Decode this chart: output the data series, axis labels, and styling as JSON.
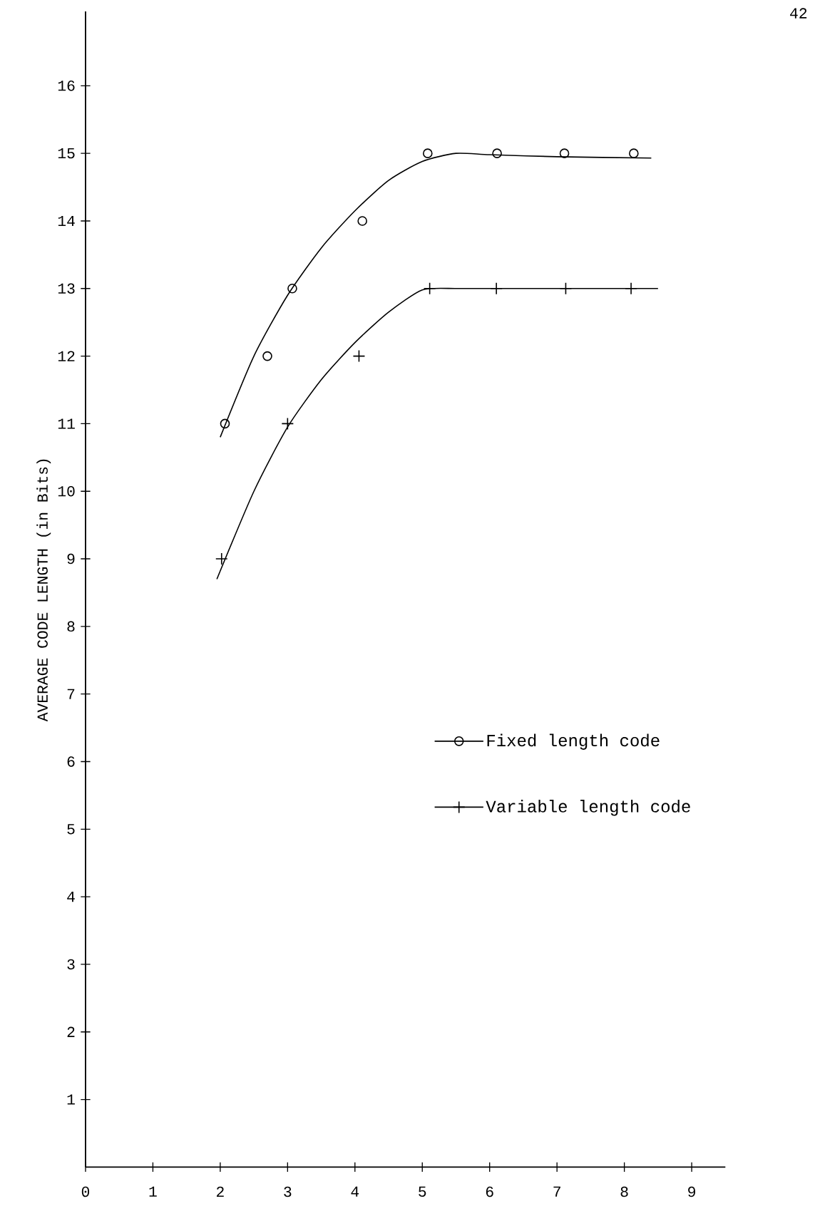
{
  "chart_data": {
    "type": "scatter",
    "ylabel": "AVERAGE CODE LENGTH (in Bits)",
    "annotations": [
      "42"
    ],
    "xlim": [
      0,
      9.5
    ],
    "ylim": [
      0,
      17.1
    ],
    "xticks": [
      0,
      1,
      2,
      3,
      4,
      5,
      6,
      7,
      8,
      9
    ],
    "yticks": [
      1,
      2,
      3,
      4,
      5,
      6,
      7,
      8,
      9,
      10,
      11,
      12,
      13,
      14,
      15,
      16
    ],
    "legend": "right",
    "grid": false,
    "series": [
      {
        "name": "Fixed length code",
        "marker": "circle",
        "color": "#000000",
        "x": [
          2.07,
          2.7,
          3.07,
          4.11,
          5.08,
          6.11,
          7.11,
          8.14
        ],
        "values": [
          11,
          12,
          13,
          14,
          15,
          15,
          15,
          15
        ]
      },
      {
        "name": "Variable length code",
        "marker": "cross",
        "color": "#000000",
        "x": [
          2.02,
          3.0,
          4.06,
          5.11,
          6.1,
          7.13,
          8.1
        ],
        "values": [
          9,
          11,
          12,
          13,
          13,
          13,
          13
        ]
      },
      {
        "type": "line",
        "marker": "none",
        "line_style": "solid",
        "color": "#000000",
        "x": [
          2.0,
          2.5,
          3.0,
          3.5,
          4.0,
          4.5,
          5.0,
          5.5,
          6.0,
          7.0,
          8.4
        ],
        "values": [
          10.8,
          12.0,
          12.9,
          13.6,
          14.15,
          14.6,
          14.88,
          15.0,
          14.98,
          14.95,
          14.93
        ]
      },
      {
        "type": "line",
        "marker": "none",
        "line_style": "solid",
        "color": "#000000",
        "x": [
          1.95,
          2.5,
          3.0,
          3.5,
          4.0,
          4.5,
          5.0,
          5.5,
          6.0,
          7.0,
          8.5
        ],
        "values": [
          8.7,
          10.0,
          10.95,
          11.65,
          12.2,
          12.65,
          12.98,
          13.0,
          13.0,
          13.0,
          13.0
        ]
      }
    ]
  }
}
